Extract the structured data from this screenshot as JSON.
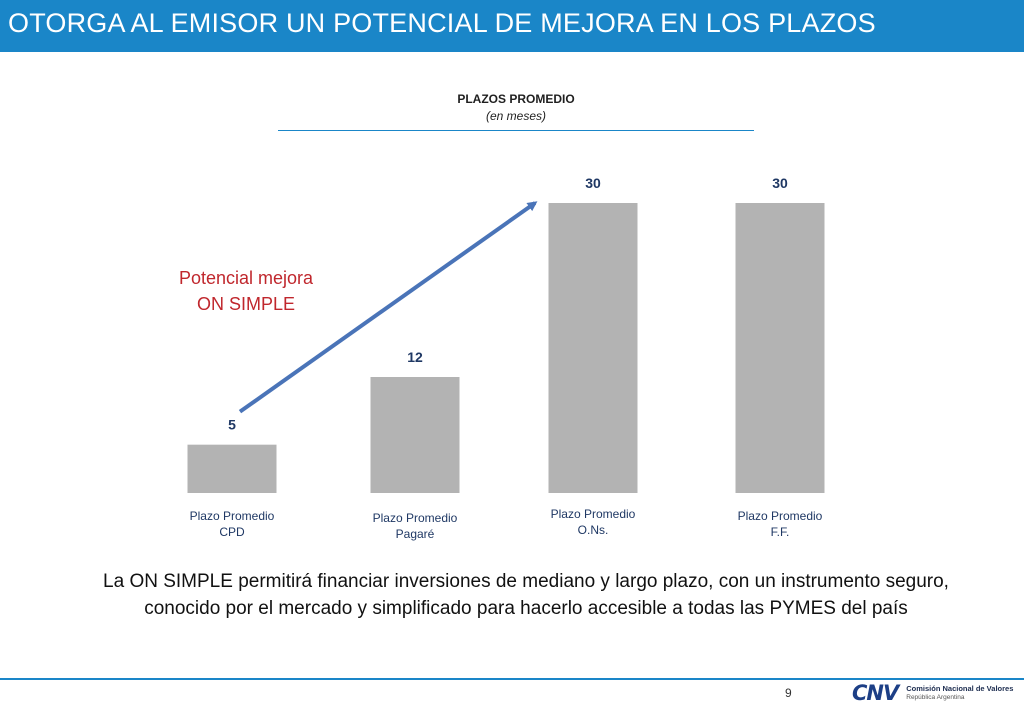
{
  "slide": {
    "title": "OTORGA AL EMISOR UN POTENCIAL DE MEJORA EN LOS PLAZOS",
    "page_number": "9"
  },
  "chart_data": {
    "type": "bar",
    "title": "PLAZOS PROMEDIO",
    "subtitle": "(en meses)",
    "categories": [
      [
        "Plazo Promedio",
        "CPD"
      ],
      [
        "Plazo Promedio",
        "Pagaré"
      ],
      [
        "Plazo Promedio",
        "O.Ns."
      ],
      [
        "Plazo Promedio",
        "F.F."
      ]
    ],
    "values": [
      5,
      12,
      30,
      30
    ],
    "data_labels": [
      "5",
      "12",
      "30",
      "30"
    ],
    "ylim": [
      0,
      30
    ],
    "grid": false,
    "bar_color": "#b3b3b3",
    "arrow_color": "#4a74b8",
    "label_color": "#1f3864"
  },
  "callout": {
    "line1": "Potencial mejora",
    "line2": "ON SIMPLE",
    "color": "#c0272d"
  },
  "footer": {
    "text": "La ON SIMPLE permitirá financiar inversiones de mediano y largo plazo, con un instrumento seguro, conocido por el mercado y simplificado para hacerlo accesible a todas las PYMES del país"
  },
  "logo": {
    "mark": "CNV",
    "line1": "Comisión Nacional de Valores",
    "line2": "República Argentina"
  },
  "colors": {
    "accent": "#1a86c8"
  }
}
